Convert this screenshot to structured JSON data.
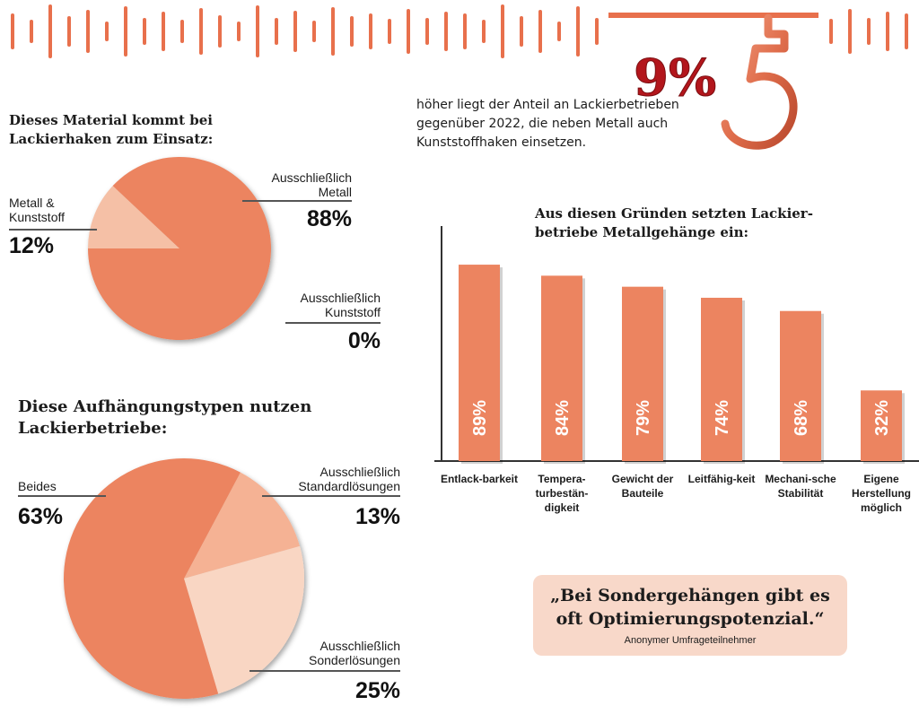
{
  "colors": {
    "accent": "#ec8460",
    "accent_dark": "#c95f40",
    "pale": "#f5c0a6",
    "paler": "#f9d6c3",
    "quote_bg": "#f8d8c9",
    "highlight_red": "#b3161c",
    "text": "#1c1c1c"
  },
  "headline": {
    "value": "9%",
    "icon": "hook-icon",
    "text": "höher liegt der Anteil an Lackierbetrieben gegenüber 2022, die neben Metall auch Kunststoffhaken einsetzen."
  },
  "quote": {
    "text": "„Bei Sondergehängen gibt es oft Optimierungspotenzial.“",
    "source": "Anonymer Umfrageteilnehmer"
  },
  "chart_data": [
    {
      "type": "pie",
      "title": "Dieses Material kommt bei Lackierhaken zum Einsatz:",
      "slices": [
        {
          "label": "Ausschließlich Metall",
          "value": 88,
          "value_label": "88%",
          "color": "#ec8460"
        },
        {
          "label": "Metall & Kunststoff",
          "value": 12,
          "value_label": "12%",
          "color": "#f5c0a6"
        },
        {
          "label": "Ausschließlich Kunststoff",
          "value": 0,
          "value_label": "0%",
          "color": "#f9d6c3"
        }
      ]
    },
    {
      "type": "pie",
      "title": "Diese Aufhängungstypen nutzen Lackierbetriebe:",
      "slices": [
        {
          "label": "Beides",
          "value": 63,
          "value_label": "63%",
          "color": "#ec8460"
        },
        {
          "label": "Ausschließlich Standardlösungen",
          "value": 13,
          "value_label": "13%",
          "color": "#f5b294"
        },
        {
          "label": "Ausschließlich Sonderlösungen",
          "value": 25,
          "value_label": "25%",
          "color": "#f9d6c3"
        }
      ]
    },
    {
      "type": "bar",
      "title": "Aus diesen Gründen setzten Lackier-betriebe Metallgehänge ein:",
      "categories": [
        "Entlack-barkeit",
        "Tempera-turbestän-digkeit",
        "Gewicht der Bauteile",
        "Leitfähig-keit",
        "Mechani-sche Stabilität",
        "Eigene Herstellung möglich"
      ],
      "values": [
        89,
        84,
        79,
        74,
        68,
        32
      ],
      "value_labels": [
        "89%",
        "84%",
        "79%",
        "74%",
        "68%",
        "32%"
      ],
      "ylim": [
        0,
        100
      ],
      "grid": false
    }
  ]
}
